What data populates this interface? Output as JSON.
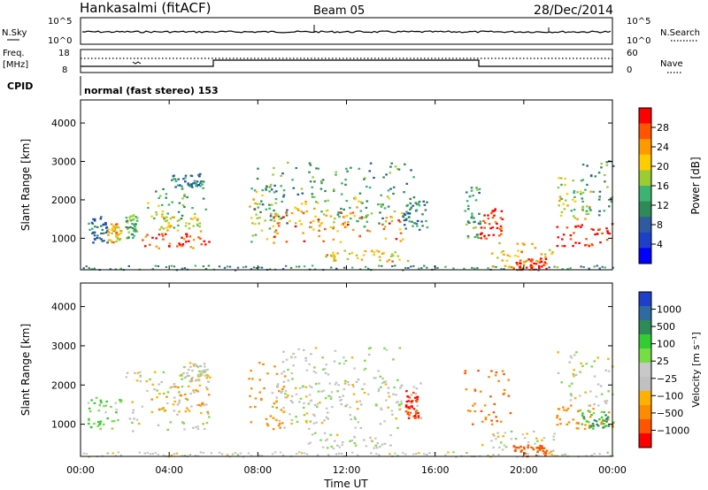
{
  "header": {
    "station": "Hankasalmi (fitACF)",
    "beam": "Beam 05",
    "date": "28/Dec/2014"
  },
  "noise_panel": {
    "left_label": "N.Sky",
    "right_label": "N.Search",
    "left_ticks": [
      "10^5",
      "10^0"
    ],
    "right_ticks": [
      "10^5",
      "10^0"
    ],
    "log_range": [
      0,
      5
    ]
  },
  "freq_panel": {
    "left_label_line1": "Freq.",
    "left_label_line2": "[MHz]",
    "right_label": "Nave",
    "left_ticks": [
      "18",
      "8"
    ],
    "right_ticks": [
      "60",
      "0"
    ],
    "freq_range_mhz": [
      8,
      18
    ],
    "nave_range": [
      0,
      60
    ]
  },
  "cpid": {
    "label": "CPID",
    "text": "normal (fast stereo) 153"
  },
  "x_axis": {
    "label": "Time UT",
    "ticks": [
      "00:00",
      "04:00",
      "08:00",
      "12:00",
      "16:00",
      "20:00",
      "00:00"
    ],
    "range_hours": [
      0,
      24
    ]
  },
  "y_axis": {
    "label": "Slant Range [km]",
    "ticks": [
      "1000",
      "2000",
      "3000",
      "4000"
    ],
    "range_km": [
      180,
      4600
    ]
  },
  "power_colorbar": {
    "label": "Power [dB]",
    "ticks": [
      "28",
      "24",
      "20",
      "16",
      "12",
      "8",
      "4"
    ],
    "colors": [
      "#ff0000",
      "#ff5500",
      "#ff9900",
      "#ffcc00",
      "#9acd32",
      "#3cb371",
      "#2e8b57",
      "#2f5aa0",
      "#1e3fc8",
      "#0000ff"
    ]
  },
  "velocity_colorbar": {
    "label": "Velocity [m s⁻¹]",
    "ticks": [
      "1000",
      "500",
      "100",
      "25",
      "−25",
      "−100",
      "−500",
      "−1000"
    ],
    "colors": [
      "#1e3fc8",
      "#2f6aa0",
      "#2e8b57",
      "#33cc33",
      "#77dd44",
      "#c8c8c8",
      "#c0c0c0",
      "#ffb000",
      "#ff8c00",
      "#ff5500",
      "#ff0000"
    ]
  },
  "chart_data": [
    {
      "type": "heatmap",
      "title": "Power",
      "xlabel": "Time UT",
      "ylabel": "Slant Range [km]",
      "xlim": [
        0,
        24
      ],
      "ylim": [
        180,
        4600
      ],
      "colorbar_label": "Power [dB]",
      "colorbar_range": [
        0,
        30
      ],
      "blobs": [
        {
          "t0": 0.3,
          "t1": 1.2,
          "r0": 900,
          "r1": 1600,
          "level": 8
        },
        {
          "t0": 1.2,
          "t1": 1.8,
          "r0": 900,
          "r1": 1400,
          "level": 20
        },
        {
          "t0": 2.0,
          "t1": 2.6,
          "r0": 1000,
          "r1": 1700,
          "level": 14
        },
        {
          "t0": 2.6,
          "t1": 5.8,
          "r0": 750,
          "r1": 1150,
          "level": 26
        },
        {
          "t0": 3.0,
          "t1": 5.8,
          "r0": 1500,
          "r1": 2500,
          "level": 14
        },
        {
          "t0": 3.5,
          "t1": 5.5,
          "r0": 1200,
          "r1": 1600,
          "level": 18
        },
        {
          "t0": 4.0,
          "t1": 5.5,
          "r0": 2300,
          "r1": 2700,
          "level": 10
        },
        {
          "t0": 7.5,
          "t1": 9.0,
          "r0": 900,
          "r1": 2400,
          "level": 18
        },
        {
          "t0": 7.8,
          "t1": 15.0,
          "r0": 1400,
          "r1": 3000,
          "level": 12
        },
        {
          "t0": 8.5,
          "t1": 14.5,
          "r0": 900,
          "r1": 1700,
          "level": 24
        },
        {
          "t0": 9.5,
          "t1": 14.0,
          "r0": 1300,
          "r1": 2100,
          "level": 18
        },
        {
          "t0": 11.0,
          "t1": 14.8,
          "r0": 400,
          "r1": 700,
          "level": 20
        },
        {
          "t0": 14.5,
          "t1": 15.6,
          "r0": 1200,
          "r1": 2000,
          "level": 10
        },
        {
          "t0": 17.3,
          "t1": 18.0,
          "r0": 1000,
          "r1": 2400,
          "level": 12
        },
        {
          "t0": 18.0,
          "t1": 19.0,
          "r0": 1000,
          "r1": 1800,
          "level": 28
        },
        {
          "t0": 18.5,
          "t1": 21.5,
          "r0": 250,
          "r1": 900,
          "level": 20
        },
        {
          "t0": 19.5,
          "t1": 21.0,
          "r0": 200,
          "r1": 500,
          "level": 28
        },
        {
          "t0": 21.3,
          "t1": 24.0,
          "r0": 800,
          "r1": 1400,
          "level": 28
        },
        {
          "t0": 21.5,
          "t1": 23.0,
          "r0": 1500,
          "r1": 2600,
          "level": 18
        },
        {
          "t0": 22.5,
          "t1": 24.0,
          "r0": 1600,
          "r1": 3100,
          "level": 12
        }
      ]
    },
    {
      "type": "heatmap",
      "title": "Velocity",
      "xlabel": "Time UT",
      "ylabel": "Slant Range [km]",
      "xlim": [
        0,
        24
      ],
      "ylim": [
        180,
        4600
      ],
      "colorbar_label": "Velocity [m s⁻¹]",
      "colorbar_range": [
        -1000,
        1000
      ],
      "blobs": [
        {
          "t0": 0.3,
          "t1": 1.8,
          "r0": 900,
          "r1": 1700,
          "level": 60
        },
        {
          "t0": 2.0,
          "t1": 6.0,
          "r0": 800,
          "r1": 2400,
          "level": 0
        },
        {
          "t0": 3.0,
          "t1": 5.8,
          "r0": 1300,
          "r1": 2300,
          "level": -90
        },
        {
          "t0": 4.5,
          "t1": 5.8,
          "r0": 2100,
          "r1": 2600,
          "level": 0
        },
        {
          "t0": 7.5,
          "t1": 9.2,
          "r0": 900,
          "r1": 2600,
          "level": -150
        },
        {
          "t0": 8.5,
          "t1": 15.5,
          "r0": 900,
          "r1": 2100,
          "level": 0
        },
        {
          "t0": 9.0,
          "t1": 14.5,
          "r0": 1500,
          "r1": 3000,
          "level": 10
        },
        {
          "t0": 10.0,
          "t1": 14.0,
          "r0": 400,
          "r1": 800,
          "level": 0
        },
        {
          "t0": 14.5,
          "t1": 15.2,
          "r0": 1100,
          "r1": 1900,
          "level": -600
        },
        {
          "t0": 17.3,
          "t1": 19.5,
          "r0": 1000,
          "r1": 2400,
          "level": -300
        },
        {
          "t0": 18.0,
          "t1": 21.5,
          "r0": 300,
          "r1": 900,
          "level": 0
        },
        {
          "t0": 19.5,
          "t1": 21.0,
          "r0": 200,
          "r1": 500,
          "level": -350
        },
        {
          "t0": 21.3,
          "t1": 24.0,
          "r0": 900,
          "r1": 1500,
          "level": -150
        },
        {
          "t0": 21.5,
          "t1": 24.0,
          "r0": 1500,
          "r1": 2900,
          "level": 0
        },
        {
          "t0": 22.5,
          "t1": 24.0,
          "r0": 900,
          "r1": 1400,
          "level": 80
        }
      ]
    }
  ]
}
